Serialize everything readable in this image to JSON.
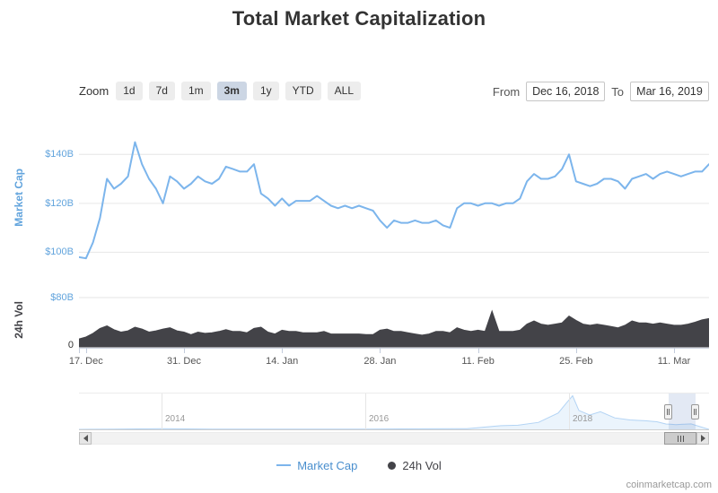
{
  "title": "Total Market Capitalization",
  "toolbar": {
    "zoom_label": "Zoom",
    "zoom_buttons": [
      "1d",
      "7d",
      "1m",
      "3m",
      "1y",
      "YTD",
      "ALL"
    ],
    "selected_zoom": "3m",
    "from_label": "From",
    "from_value": "Dec 16, 2018",
    "to_label": "To",
    "to_value": "Mar 16, 2019"
  },
  "legend": [
    {
      "label": "Market Cap",
      "color": "#7cb5ec",
      "text_color": "#4a8fce",
      "symbol": "line"
    },
    {
      "label": "24h Vol",
      "color": "#434348",
      "text_color": "#434348",
      "symbol": "circle"
    }
  ],
  "watermark": "coinmarketcap.com",
  "chart_data": {
    "type": "line",
    "title": "Total Market Capitalization",
    "x_range": [
      "Dec 16, 2018",
      "Mar 16, 2019"
    ],
    "days_total": 90,
    "x_ticks": [
      {
        "label": "",
        "day": 0
      },
      {
        "label": "17. Dec",
        "day": 1
      },
      {
        "label": "31. Dec",
        "day": 15
      },
      {
        "label": "14. Jan",
        "day": 29
      },
      {
        "label": "28. Jan",
        "day": 43
      },
      {
        "label": "11. Feb",
        "day": 57
      },
      {
        "label": "25. Feb",
        "day": 71
      },
      {
        "label": "11. Mar",
        "day": 85
      }
    ],
    "series": [
      {
        "name": "Market Cap",
        "type": "line",
        "color": "#7cb5ec",
        "axis_color": "#62a4dd",
        "unit": "$B",
        "ylim": [
          95,
          150
        ],
        "grid_values": [
          100,
          120,
          140
        ],
        "ytick_labels": [
          "$140B",
          "$120B",
          "$100B"
        ],
        "values": [
          98,
          97.5,
          104,
          114,
          130,
          126,
          128,
          131,
          145,
          136,
          130,
          126,
          120,
          131,
          129,
          126,
          128,
          131,
          129,
          128,
          130,
          135,
          134,
          133,
          133,
          136,
          124,
          122,
          119,
          122,
          119,
          121,
          121,
          121,
          123,
          121,
          119,
          118,
          119,
          118,
          119,
          118,
          117,
          113,
          110,
          113,
          112,
          112,
          113,
          112,
          112,
          113,
          111,
          110,
          118,
          120,
          120,
          119,
          120,
          120,
          119,
          120,
          120,
          122,
          129,
          132,
          130,
          130,
          131,
          134,
          140,
          129,
          128,
          127,
          128,
          130,
          130,
          129,
          126,
          130,
          131,
          132,
          130,
          132,
          133,
          132,
          131,
          132,
          133,
          133,
          136
        ]
      },
      {
        "name": "24h Vol",
        "type": "area",
        "color": "#434348",
        "axis_color": "#434348",
        "unit": "$B",
        "ylim": [
          0,
          80
        ],
        "grid_values": [
          80
        ],
        "ytick_labels": [
          "$80B",
          "0"
        ],
        "values": [
          13,
          16,
          22,
          30,
          34,
          28,
          24,
          26,
          32,
          29,
          24,
          26,
          29,
          31,
          26,
          24,
          20,
          24,
          22,
          23,
          25,
          28,
          25,
          25,
          23,
          30,
          32,
          24,
          21,
          27,
          25,
          25,
          23,
          23,
          23,
          25,
          21,
          21,
          21,
          21,
          21,
          20,
          20,
          27,
          29,
          25,
          25,
          23,
          21,
          19,
          21,
          25,
          25,
          23,
          31,
          27,
          25,
          27,
          25,
          58,
          25,
          25,
          25,
          27,
          37,
          42,
          37,
          35,
          37,
          39,
          50,
          43,
          37,
          35,
          37,
          35,
          33,
          31,
          35,
          42,
          39,
          39,
          37,
          39,
          37,
          35,
          35,
          37,
          40,
          44,
          46
        ]
      }
    ],
    "navigator": {
      "year_labels": [
        {
          "label": "2014",
          "f": 0.131
        },
        {
          "label": "2016",
          "f": 0.454
        },
        {
          "label": "2018",
          "f": 0.778
        }
      ],
      "max": 830,
      "points": [
        {
          "f": 0.018,
          "v": 2
        },
        {
          "f": 0.131,
          "v": 15
        },
        {
          "f": 0.212,
          "v": 6
        },
        {
          "f": 0.293,
          "v": 4
        },
        {
          "f": 0.374,
          "v": 5
        },
        {
          "f": 0.454,
          "v": 7
        },
        {
          "f": 0.535,
          "v": 13
        },
        {
          "f": 0.616,
          "v": 18
        },
        {
          "f": 0.669,
          "v": 90
        },
        {
          "f": 0.697,
          "v": 100
        },
        {
          "f": 0.729,
          "v": 170
        },
        {
          "f": 0.761,
          "v": 400
        },
        {
          "f": 0.773,
          "v": 640
        },
        {
          "f": 0.783,
          "v": 820
        },
        {
          "f": 0.794,
          "v": 460
        },
        {
          "f": 0.81,
          "v": 350
        },
        {
          "f": 0.827,
          "v": 430
        },
        {
          "f": 0.851,
          "v": 280
        },
        {
          "f": 0.875,
          "v": 230
        },
        {
          "f": 0.899,
          "v": 210
        },
        {
          "f": 0.918,
          "v": 185
        },
        {
          "f": 0.931,
          "v": 130
        },
        {
          "f": 0.939,
          "v": 125
        },
        {
          "f": 0.947,
          "v": 115
        },
        {
          "f": 0.958,
          "v": 125
        },
        {
          "f": 0.972,
          "v": 133
        }
      ]
    }
  }
}
